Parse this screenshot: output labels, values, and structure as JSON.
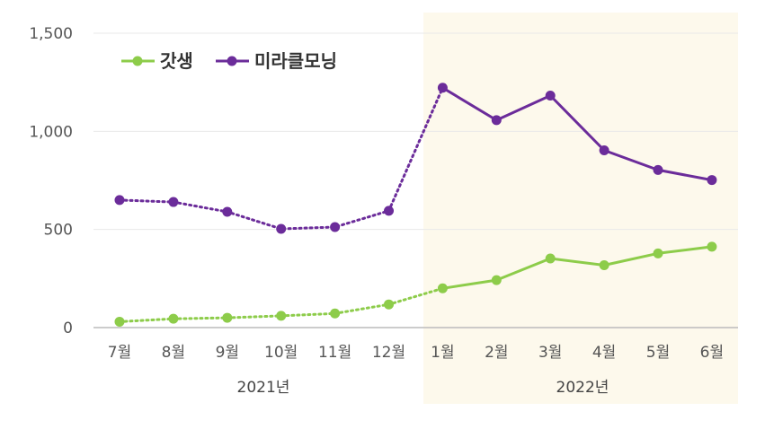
{
  "chart_data": {
    "type": "line",
    "title": "",
    "xlabel": "",
    "ylabel": "",
    "ylim": [
      0,
      1500
    ],
    "yticks": [
      "0",
      "500",
      "1,000",
      "1,500"
    ],
    "ytick_values": [
      0,
      500,
      1000,
      1500
    ],
    "categories": [
      "7월",
      "8월",
      "9월",
      "10월",
      "11월",
      "12월",
      "1월",
      "2월",
      "3월",
      "4월",
      "5월",
      "6월"
    ],
    "year_groups": [
      {
        "label": "2021년",
        "from": 0,
        "to": 5
      },
      {
        "label": "2022년",
        "from": 6,
        "to": 11,
        "highlighted": true
      }
    ],
    "legend_position": "top-left",
    "series": [
      {
        "name": "갓생",
        "color": "#8dcc4a",
        "values": [
          30,
          45,
          50,
          60,
          72,
          118,
          200,
          242,
          352,
          318,
          378,
          412
        ],
        "dotted_until_index": 6
      },
      {
        "name": "미라클모닝",
        "color": "#6b2c9a",
        "values": [
          650,
          640,
          590,
          503,
          512,
          595,
          1222,
          1057,
          1182,
          903,
          803,
          752
        ],
        "dotted_until_index": 6
      }
    ],
    "highlight_color": "#fdf9ec",
    "gridline_color": "#e9e9e9",
    "axis_color": "#bbbbbb"
  }
}
